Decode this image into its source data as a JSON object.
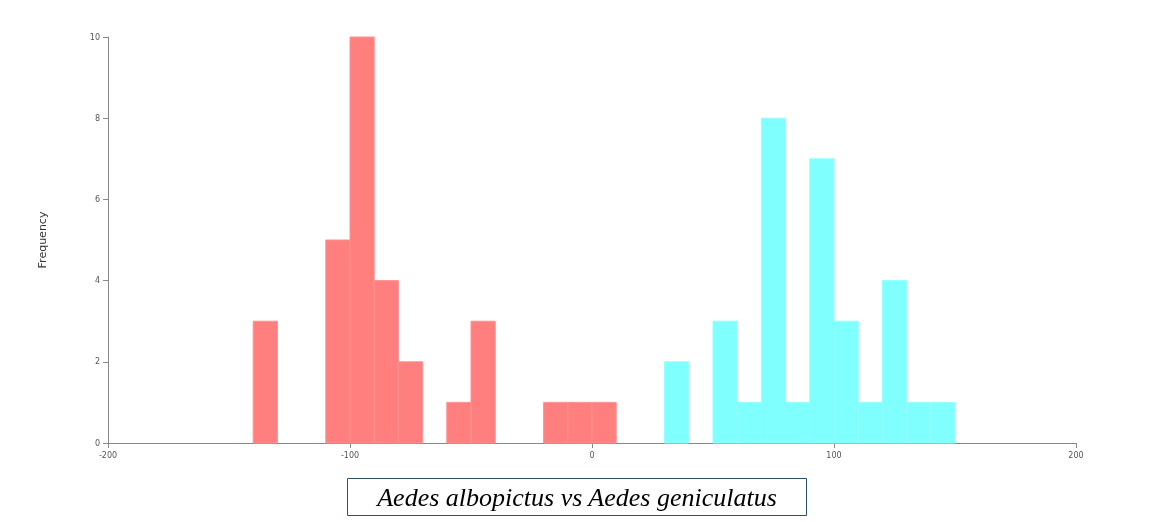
{
  "chart_data": {
    "type": "histogram",
    "ylabel": "Frequency",
    "annotations": [
      "Aedes albopictus vs Aedes geniculatus"
    ],
    "bins": [
      -140,
      -130,
      -120,
      -110,
      -100,
      -90,
      -80,
      -70,
      -60,
      -50,
      -40,
      -30,
      -20,
      -10,
      0,
      10,
      20,
      30,
      40,
      50,
      60,
      70,
      80,
      90,
      100,
      110,
      120,
      130,
      140,
      150
    ],
    "series": [
      {
        "color": "#ff7f7f",
        "values": [
          3,
          0,
          0,
          5,
          10,
          4,
          2,
          0,
          1,
          3,
          0,
          0,
          1,
          1,
          1,
          0,
          0,
          0,
          0,
          0,
          0,
          0,
          0,
          0,
          0,
          0,
          0,
          0,
          0
        ]
      },
      {
        "color": "#80ffff",
        "values": [
          0,
          0,
          0,
          0,
          0,
          0,
          0,
          0,
          0,
          0,
          0,
          0,
          0,
          0,
          0,
          0,
          0,
          2,
          0,
          3,
          1,
          8,
          1,
          7,
          3,
          1,
          4,
          1,
          1
        ]
      }
    ],
    "xlim": [
      -200,
      200
    ],
    "xticks": [
      -200,
      -100,
      0,
      100,
      200
    ],
    "ylim": [
      0,
      10
    ],
    "yticks": [
      0,
      2,
      4,
      6,
      8,
      10
    ],
    "grid": false
  }
}
